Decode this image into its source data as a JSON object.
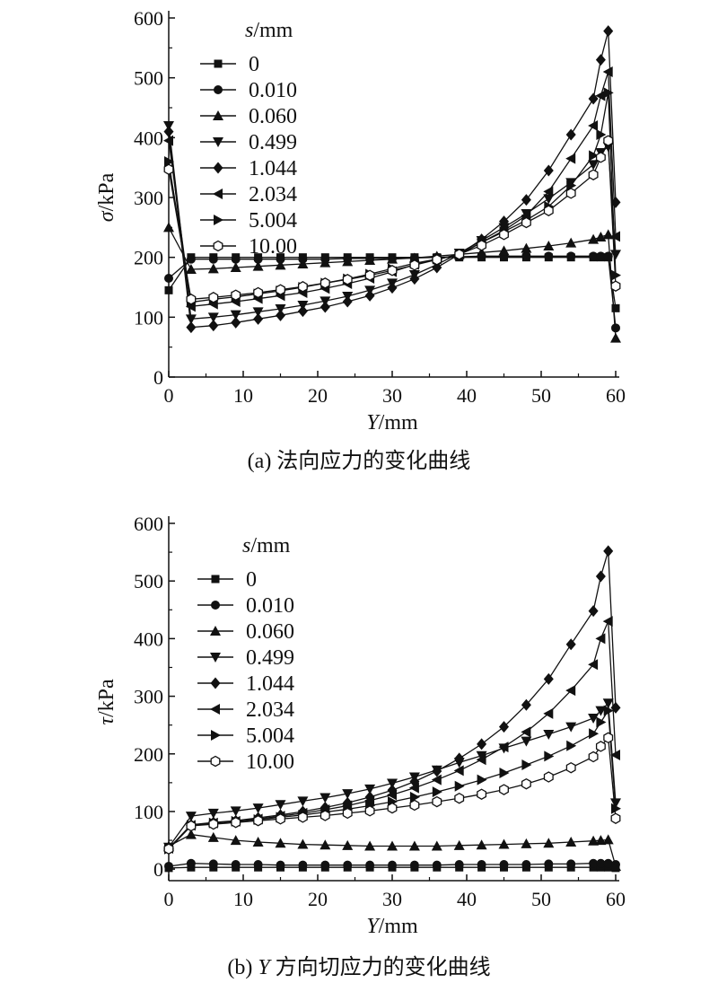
{
  "chart_data": [
    {
      "type": "line",
      "panel": "a",
      "ylabel_symbol": "σ",
      "ylabel_unit": "/kPa",
      "xlabel_symbol": "Y",
      "xlabel_unit": "/mm",
      "caption": "(a) 法向应力的变化曲线",
      "legend_title_symbol": "s",
      "legend_title_unit": "/mm",
      "xlim": [
        0,
        60
      ],
      "ylim": [
        0,
        600
      ],
      "xticks": [
        "0",
        "10",
        "20",
        "30",
        "40",
        "50",
        "60"
      ],
      "yticks": [
        "0",
        "100",
        "200",
        "300",
        "400",
        "500",
        "600"
      ],
      "series": [
        {
          "name": "0",
          "marker": "square",
          "x": [
            0,
            3,
            6,
            9,
            12,
            15,
            18,
            21,
            24,
            27,
            30,
            33,
            36,
            39,
            42,
            45,
            48,
            51,
            54,
            57,
            58,
            59,
            60
          ],
          "y": [
            145,
            200,
            200,
            200,
            200,
            200,
            200,
            200,
            200,
            200,
            200,
            200,
            200,
            200,
            200,
            200,
            200,
            200,
            200,
            200,
            200,
            200,
            115
          ]
        },
        {
          "name": "0.010",
          "marker": "circle",
          "x": [
            0,
            3,
            6,
            9,
            12,
            15,
            18,
            21,
            24,
            27,
            30,
            33,
            36,
            39,
            42,
            45,
            48,
            51,
            54,
            57,
            58,
            59,
            60
          ],
          "y": [
            165,
            197,
            197,
            197,
            197,
            197,
            197,
            197,
            198,
            198,
            198,
            199,
            200,
            201,
            202,
            202,
            202,
            202,
            202,
            202,
            202,
            202,
            82
          ]
        },
        {
          "name": "0.060",
          "marker": "triangle-up",
          "x": [
            0,
            3,
            6,
            9,
            12,
            15,
            18,
            21,
            24,
            27,
            30,
            33,
            36,
            39,
            42,
            45,
            48,
            51,
            54,
            57,
            58,
            59,
            60
          ],
          "y": [
            250,
            180,
            181,
            183,
            185,
            187,
            189,
            191,
            193,
            195,
            197,
            199,
            202,
            205,
            208,
            211,
            215,
            219,
            224,
            230,
            234,
            238,
            65
          ]
        },
        {
          "name": "0.499",
          "marker": "triangle-down",
          "x": [
            0,
            3,
            6,
            9,
            12,
            15,
            18,
            21,
            24,
            27,
            30,
            33,
            36,
            39,
            42,
            45,
            48,
            51,
            54,
            57,
            58,
            59,
            60
          ],
          "y": [
            420,
            97,
            100,
            104,
            109,
            114,
            120,
            127,
            135,
            145,
            157,
            171,
            188,
            207,
            228,
            250,
            273,
            298,
            325,
            355,
            375,
            385,
            205
          ]
        },
        {
          "name": "1.044",
          "marker": "diamond",
          "x": [
            0,
            3,
            6,
            9,
            12,
            15,
            18,
            21,
            24,
            27,
            30,
            33,
            36,
            39,
            42,
            45,
            48,
            51,
            54,
            57,
            58,
            59,
            60
          ],
          "y": [
            410,
            83,
            86,
            91,
            97,
            103,
            110,
            117,
            126,
            136,
            149,
            164,
            183,
            205,
            230,
            260,
            296,
            345,
            405,
            465,
            530,
            578,
            292
          ]
        },
        {
          "name": "2.034",
          "marker": "triangle-left",
          "x": [
            0,
            3,
            6,
            9,
            12,
            15,
            18,
            21,
            24,
            27,
            30,
            33,
            36,
            39,
            42,
            45,
            48,
            51,
            54,
            57,
            58,
            59,
            60
          ],
          "y": [
            395,
            118,
            122,
            126,
            131,
            136,
            141,
            148,
            156,
            165,
            176,
            188,
            197,
            205,
            225,
            245,
            270,
            310,
            365,
            420,
            470,
            510,
            235
          ]
        },
        {
          "name": "5.004",
          "marker": "triangle-right",
          "x": [
            0,
            3,
            6,
            9,
            12,
            15,
            18,
            21,
            24,
            27,
            30,
            33,
            36,
            39,
            42,
            45,
            48,
            51,
            54,
            57,
            58,
            59,
            60
          ],
          "y": [
            360,
            125,
            130,
            134,
            139,
            144,
            150,
            157,
            164,
            172,
            181,
            190,
            197,
            204,
            225,
            243,
            262,
            285,
            320,
            370,
            405,
            475,
            170
          ]
        },
        {
          "name": "10.00",
          "marker": "hexagon-open",
          "x": [
            0,
            3,
            6,
            9,
            12,
            15,
            18,
            21,
            24,
            27,
            30,
            33,
            36,
            39,
            42,
            45,
            48,
            51,
            54,
            57,
            58,
            59,
            60
          ],
          "y": [
            347,
            130,
            133,
            137,
            141,
            146,
            151,
            157,
            163,
            170,
            178,
            187,
            196,
            205,
            220,
            238,
            258,
            278,
            307,
            338,
            367,
            395,
            152
          ]
        }
      ]
    },
    {
      "type": "line",
      "panel": "b",
      "ylabel_symbol": "τ",
      "ylabel_unit": "/kPa",
      "xlabel_symbol": "Y",
      "xlabel_unit": "/mm",
      "caption_symbol": "Y",
      "caption": "(b) Y 方向切应力的变化曲线",
      "legend_title_symbol": "s",
      "legend_title_unit": "/mm",
      "xlim": [
        0,
        60
      ],
      "ylim": [
        -20,
        600
      ],
      "xticks": [
        "0",
        "10",
        "20",
        "30",
        "40",
        "50",
        "60"
      ],
      "yticks": [
        "0",
        "100",
        "200",
        "300",
        "400",
        "500",
        "600"
      ],
      "series": [
        {
          "name": "0",
          "marker": "square",
          "x": [
            0,
            3,
            6,
            9,
            12,
            15,
            18,
            21,
            24,
            27,
            30,
            33,
            36,
            39,
            42,
            45,
            48,
            51,
            54,
            57,
            58,
            59,
            60
          ],
          "y": [
            2,
            3,
            3,
            3,
            3,
            3,
            3,
            3,
            3,
            3,
            3,
            3,
            3,
            3,
            3,
            3,
            3,
            3,
            3,
            3,
            3,
            3,
            2
          ]
        },
        {
          "name": "0.010",
          "marker": "circle",
          "x": [
            0,
            3,
            6,
            9,
            12,
            15,
            18,
            21,
            24,
            27,
            30,
            33,
            36,
            39,
            42,
            45,
            48,
            51,
            54,
            57,
            58,
            59,
            60
          ],
          "y": [
            5,
            10,
            9,
            8,
            8,
            7,
            7,
            7,
            7,
            7,
            7,
            7,
            7,
            8,
            8,
            8,
            8,
            9,
            9,
            10,
            10,
            10,
            8
          ]
        },
        {
          "name": "0.060",
          "marker": "triangle-up",
          "x": [
            0,
            3,
            6,
            9,
            12,
            15,
            18,
            21,
            24,
            27,
            30,
            33,
            36,
            39,
            42,
            45,
            48,
            51,
            54,
            57,
            58,
            59,
            60
          ],
          "y": [
            40,
            60,
            55,
            50,
            47,
            45,
            43,
            42,
            41,
            40,
            40,
            40,
            40,
            41,
            42,
            43,
            44,
            45,
            47,
            49,
            50,
            51,
            5
          ]
        },
        {
          "name": "0.499",
          "marker": "triangle-down",
          "x": [
            0,
            3,
            6,
            9,
            12,
            15,
            18,
            21,
            24,
            27,
            30,
            33,
            36,
            39,
            42,
            45,
            48,
            51,
            54,
            57,
            58,
            59,
            60
          ],
          "y": [
            38,
            92,
            97,
            101,
            106,
            112,
            118,
            124,
            131,
            139,
            149,
            160,
            172,
            185,
            197,
            210,
            222,
            234,
            247,
            262,
            275,
            288,
            115
          ]
        },
        {
          "name": "1.044",
          "marker": "diamond",
          "x": [
            0,
            3,
            6,
            9,
            12,
            15,
            18,
            21,
            24,
            27,
            30,
            33,
            36,
            39,
            42,
            45,
            48,
            51,
            54,
            57,
            58,
            59,
            60
          ],
          "y": [
            36,
            77,
            81,
            84,
            89,
            94,
            100,
            107,
            115,
            125,
            137,
            152,
            170,
            192,
            217,
            247,
            285,
            330,
            390,
            448,
            508,
            552,
            280
          ]
        },
        {
          "name": "2.034",
          "marker": "triangle-left",
          "x": [
            0,
            3,
            6,
            9,
            12,
            15,
            18,
            21,
            24,
            27,
            30,
            33,
            36,
            39,
            42,
            45,
            48,
            51,
            54,
            57,
            58,
            59,
            60
          ],
          "y": [
            36,
            76,
            80,
            83,
            87,
            92,
            97,
            103,
            110,
            119,
            129,
            141,
            155,
            171,
            190,
            212,
            238,
            270,
            310,
            355,
            400,
            430,
            198
          ]
        },
        {
          "name": "5.004",
          "marker": "triangle-right",
          "x": [
            0,
            3,
            6,
            9,
            12,
            15,
            18,
            21,
            24,
            27,
            30,
            33,
            36,
            39,
            42,
            45,
            48,
            51,
            54,
            57,
            58,
            59,
            60
          ],
          "y": [
            35,
            76,
            80,
            83,
            86,
            90,
            94,
            99,
            104,
            110,
            117,
            125,
            134,
            144,
            155,
            167,
            181,
            196,
            214,
            235,
            255,
            275,
            105
          ]
        },
        {
          "name": "10.00",
          "marker": "hexagon-open",
          "x": [
            0,
            3,
            6,
            9,
            12,
            15,
            18,
            21,
            24,
            27,
            30,
            33,
            36,
            39,
            42,
            45,
            48,
            51,
            54,
            57,
            58,
            59,
            60
          ],
          "y": [
            35,
            75,
            78,
            81,
            84,
            87,
            90,
            93,
            97,
            101,
            106,
            111,
            117,
            123,
            130,
            138,
            148,
            160,
            176,
            195,
            213,
            228,
            88
          ]
        }
      ]
    }
  ]
}
